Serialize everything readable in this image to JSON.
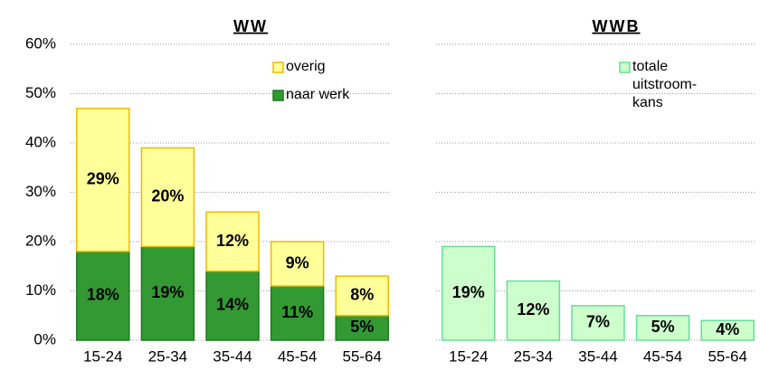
{
  "chart_data": [
    {
      "type": "bar",
      "stacked": true,
      "title": "WW",
      "categories": [
        "15-24",
        "25-34",
        "35-44",
        "45-54",
        "55-64"
      ],
      "series": [
        {
          "name": "naar werk",
          "color": "#339933",
          "edgecolor": "#1f7a1f",
          "values": [
            18,
            19,
            14,
            11,
            5
          ],
          "value_labels": [
            "18%",
            "19%",
            "14%",
            "11%",
            "5%"
          ]
        },
        {
          "name": "overig",
          "color": "#ffff99",
          "edgecolor": "#f0b800",
          "values": [
            29,
            20,
            12,
            9,
            8
          ],
          "value_labels": [
            "29%",
            "20%",
            "12%",
            "9%",
            "8%"
          ]
        }
      ],
      "ylim": [
        0,
        60
      ],
      "yticks": [
        {
          "value": 0,
          "label": "0%"
        },
        {
          "value": 10,
          "label": "10%"
        },
        {
          "value": 20,
          "label": "20%"
        },
        {
          "value": 30,
          "label": "30%"
        },
        {
          "value": 40,
          "label": "40%"
        },
        {
          "value": 50,
          "label": "50%"
        },
        {
          "value": 60,
          "label": "60%"
        }
      ],
      "grid": true
    },
    {
      "type": "bar",
      "title": "WWB",
      "categories": [
        "15-24",
        "25-34",
        "35-44",
        "45-54",
        "55-64"
      ],
      "series": [
        {
          "name": "totale uitstroom-kans",
          "color": "#ccffcc",
          "edgecolor": "#66dd99",
          "values": [
            19,
            12,
            7,
            5,
            4
          ],
          "value_labels": [
            "19%",
            "12%",
            "7%",
            "5%",
            "4%"
          ]
        }
      ],
      "grid": true
    }
  ]
}
